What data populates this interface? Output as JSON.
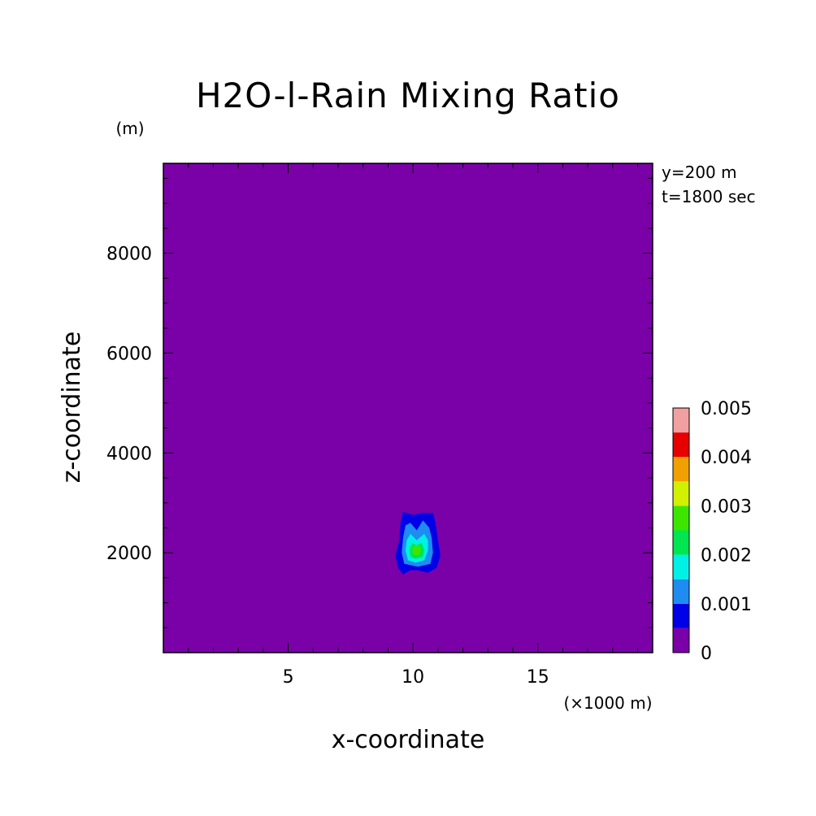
{
  "chart_data": {
    "type": "heatmap",
    "title": "H2O-l-Rain Mixing Ratio",
    "xlabel": "x-coordinate",
    "ylabel": "z-coordinate",
    "x_unit_label": "(×1000 m)",
    "y_unit_label": "(m)",
    "annotations": [
      "y=200 m",
      "t=1800 sec"
    ],
    "xlim": [
      0,
      19.6
    ],
    "ylim": [
      0,
      9800
    ],
    "x_ticks": [
      5,
      10,
      15
    ],
    "x_tick_labels": [
      "5",
      "10",
      "15"
    ],
    "y_ticks": [
      2000,
      4000,
      6000,
      8000
    ],
    "y_tick_labels": [
      "2000",
      "4000",
      "6000",
      "8000"
    ],
    "background_level": 0,
    "colorbar": {
      "levels": [
        0,
        0.0005,
        0.001,
        0.0015,
        0.002,
        0.0025,
        0.003,
        0.0035,
        0.004,
        0.0045,
        0.005
      ],
      "colors": [
        "#7a00a8",
        "#0000e6",
        "#1e8cf0",
        "#00f0e6",
        "#00e650",
        "#3ce600",
        "#d2f000",
        "#f0a000",
        "#e60000",
        "#f0a0a0"
      ],
      "labels": [
        "0",
        "0.001",
        "0.002",
        "0.003",
        "0.004",
        "0.005"
      ],
      "label_values": [
        0,
        0.001,
        0.002,
        0.003,
        0.004,
        0.005
      ]
    },
    "contours": [
      {
        "level": 0.0005,
        "x": [
          9.6,
          9.4,
          9.3,
          9.45,
          9.5,
          9.6,
          10.0,
          10.4,
          10.8,
          10.9,
          11.0,
          11.1,
          10.95,
          10.6,
          10.2,
          9.9,
          9.6
        ],
        "y": [
          1570,
          1700,
          1950,
          2250,
          2600,
          2820,
          2760,
          2800,
          2800,
          2600,
          2250,
          1950,
          1700,
          1600,
          1650,
          1650,
          1570
        ]
      },
      {
        "level": 0.001,
        "x": [
          9.65,
          9.55,
          9.6,
          9.7,
          9.9,
          10.15,
          10.4,
          10.65,
          10.75,
          10.8,
          10.7,
          10.2,
          9.65
        ],
        "y": [
          1780,
          2000,
          2300,
          2550,
          2600,
          2450,
          2650,
          2500,
          2300,
          2000,
          1780,
          1720,
          1780
        ]
      },
      {
        "level": 0.0015,
        "x": [
          9.8,
          9.7,
          9.75,
          9.9,
          10.15,
          10.45,
          10.6,
          10.6,
          10.45,
          10.1,
          9.8
        ],
        "y": [
          1850,
          2050,
          2250,
          2380,
          2250,
          2380,
          2250,
          2050,
          1850,
          1800,
          1850
        ]
      },
      {
        "level": 0.002,
        "x": [
          9.9,
          9.85,
          9.95,
          10.15,
          10.35,
          10.45,
          10.4,
          10.1,
          9.9
        ],
        "y": [
          1920,
          2050,
          2200,
          2150,
          2200,
          2050,
          1920,
          1880,
          1920
        ]
      },
      {
        "level": 0.0025,
        "x": [
          10.0,
          9.98,
          10.05,
          10.2,
          10.3,
          10.32,
          10.25,
          10.1,
          10.0
        ],
        "y": [
          1980,
          2060,
          2140,
          2150,
          2100,
          2030,
          1960,
          1950,
          1980
        ]
      }
    ]
  }
}
